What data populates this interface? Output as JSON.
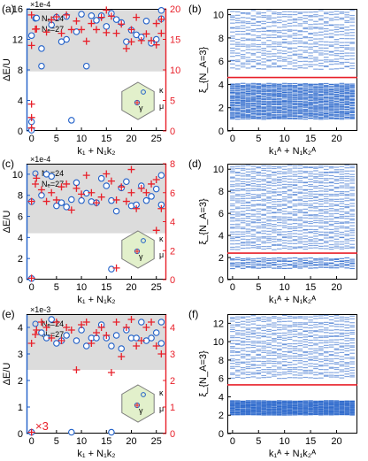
{
  "colors": {
    "blue": "#1f5fc8",
    "red": "#e8202a",
    "band": "#dcdcdc",
    "bz_fill": "#e2f0cb",
    "bz_stroke": "#7a7a7a",
    "entanglement_line": "#e8202a"
  },
  "left_axis_label": "ΔE/U",
  "x_axis_left_label": "k₁ + N₁k₂",
  "x_axis_right_label": "k₁ᴬ + N₁k₂ᴬ",
  "legend": {
    "blue": "Nₑ=24",
    "red": "Nₑ=27"
  },
  "bz_labels": {
    "gamma": "γ",
    "kappa": "κ",
    "mu": "μ"
  },
  "chart_data": [
    {
      "panel_label": "(a)",
      "type": "scatter",
      "exponent": "×1e-4",
      "xlim": [
        -1,
        27
      ],
      "xticks": [
        0,
        5,
        10,
        15,
        20,
        25
      ],
      "ylim_left": [
        0,
        16
      ],
      "yticks_left": [
        0,
        4,
        8,
        12,
        16
      ],
      "ylim_right": [
        0,
        20
      ],
      "yticks_right": [
        0,
        5,
        10,
        15,
        20
      ],
      "gray_band_left": [
        7.8,
        16
      ],
      "series": [
        {
          "name": "Nₑ=24",
          "color": "blue",
          "marker": "circle",
          "points": [
            [
              0,
              0.1
            ],
            [
              0,
              1.2
            ],
            [
              0,
              12.5
            ],
            [
              1,
              14.8
            ],
            [
              2,
              10.8
            ],
            [
              2,
              8.5
            ],
            [
              4,
              13.9
            ],
            [
              5,
              14.9
            ],
            [
              6,
              11.7
            ],
            [
              7,
              12.0
            ],
            [
              7,
              15.0
            ],
            [
              8,
              1.4
            ],
            [
              9,
              13.0
            ],
            [
              10,
              15.3
            ],
            [
              11,
              8.5
            ],
            [
              12,
              15.1
            ],
            [
              13,
              14.5
            ],
            [
              14,
              15.1
            ],
            [
              15,
              13.7
            ],
            [
              16,
              15.4
            ],
            [
              17,
              14.6
            ],
            [
              18,
              14.2
            ],
            [
              19,
              11.7
            ],
            [
              20,
              13.2
            ],
            [
              21,
              12.6
            ],
            [
              22,
              12.3
            ],
            [
              23,
              14.4
            ],
            [
              24,
              11.5
            ],
            [
              25,
              12.0
            ],
            [
              26,
              15.8
            ],
            [
              26,
              14.7
            ]
          ]
        },
        {
          "name": "Nₑ=27",
          "color": "red",
          "marker": "plus",
          "points": [
            [
              0,
              0.5
            ],
            [
              0,
              2.2
            ],
            [
              0,
              4.4
            ],
            [
              0,
              14.0
            ],
            [
              0,
              19.0
            ],
            [
              1,
              16.7
            ],
            [
              3,
              16.2
            ],
            [
              4,
              18.2
            ],
            [
              5,
              18.7
            ],
            [
              6,
              16.0
            ],
            [
              7,
              19.0
            ],
            [
              8,
              16.6
            ],
            [
              9,
              18.0
            ],
            [
              10,
              16.6
            ],
            [
              11,
              14.7
            ],
            [
              12,
              17.6
            ],
            [
              13,
              16.6
            ],
            [
              14,
              18.6
            ],
            [
              15,
              19.8
            ],
            [
              15,
              16.1
            ],
            [
              16,
              18.8
            ],
            [
              17,
              16.0
            ],
            [
              18,
              17.5
            ],
            [
              19,
              13.5
            ],
            [
              20,
              16.6
            ],
            [
              20,
              14.6
            ],
            [
              21,
              18.6
            ],
            [
              22,
              14.8
            ],
            [
              23,
              15.9
            ],
            [
              24,
              14.8
            ],
            [
              25,
              17.6
            ],
            [
              25,
              14.1
            ],
            [
              26,
              18.3
            ],
            [
              26,
              16.0
            ]
          ]
        }
      ]
    },
    {
      "panel_label": "(c)",
      "type": "scatter",
      "exponent": "×1e-4",
      "xlim": [
        -1,
        27
      ],
      "xticks": [
        0,
        5,
        10,
        15,
        20,
        25
      ],
      "ylim_left": [
        0,
        11
      ],
      "yticks_left": [
        0,
        2,
        4,
        6,
        8,
        10
      ],
      "ylim_right": [
        0,
        8
      ],
      "yticks_right": [
        0,
        2,
        4,
        6,
        8
      ],
      "gray_band_left": [
        4.4,
        11
      ],
      "series": [
        {
          "name": "Nₑ=24",
          "color": "blue",
          "marker": "circle",
          "points": [
            [
              0,
              0.1
            ],
            [
              0,
              7.4
            ],
            [
              2,
              8.0
            ],
            [
              3,
              10.0
            ],
            [
              4,
              9.8
            ],
            [
              5,
              7.0
            ],
            [
              6,
              7.3
            ],
            [
              7,
              6.9
            ],
            [
              8,
              7.6
            ],
            [
              9,
              9.2
            ],
            [
              10,
              7.5
            ],
            [
              11,
              8.2
            ],
            [
              12,
              7.4
            ],
            [
              13,
              7.3
            ],
            [
              14,
              9.6
            ],
            [
              15,
              8.9
            ],
            [
              16,
              1.0
            ],
            [
              16,
              7.5
            ],
            [
              17,
              6.5
            ],
            [
              18,
              8.7
            ],
            [
              19,
              9.3
            ],
            [
              20,
              7.0
            ],
            [
              21,
              7.1
            ],
            [
              22,
              8.9
            ],
            [
              23,
              7.5
            ],
            [
              24,
              7.9
            ],
            [
              25,
              8.6
            ],
            [
              26,
              9.9
            ],
            [
              26,
              7.1
            ]
          ]
        },
        {
          "name": "Nₑ=27",
          "color": "red",
          "marker": "plus",
          "points": [
            [
              0,
              0.1
            ],
            [
              0,
              5.4
            ],
            [
              1,
              7.0
            ],
            [
              2,
              6.2
            ],
            [
              3,
              5.4
            ],
            [
              4,
              6.0
            ],
            [
              5,
              5.5
            ],
            [
              6,
              6.4
            ],
            [
              7,
              6.6
            ],
            [
              8,
              4.8
            ],
            [
              9,
              6.3
            ],
            [
              10,
              5.9
            ],
            [
              11,
              7.2
            ],
            [
              12,
              6.0
            ],
            [
              13,
              5.3
            ],
            [
              14,
              5.7
            ],
            [
              15,
              7.3
            ],
            [
              16,
              6.8
            ],
            [
              17,
              5.5
            ],
            [
              17,
              0.8
            ],
            [
              18,
              6.4
            ],
            [
              19,
              5.4
            ],
            [
              20,
              7.6
            ],
            [
              20,
              6.0
            ],
            [
              21,
              4.9
            ],
            [
              22,
              6.3
            ],
            [
              23,
              6.0
            ],
            [
              24,
              6.6
            ],
            [
              25,
              6.9
            ],
            [
              25,
              3.4
            ],
            [
              26,
              4.9
            ]
          ]
        }
      ]
    },
    {
      "panel_label": "(e)",
      "type": "scatter",
      "exponent": "×1e-3",
      "annotation": "×3",
      "xlim": [
        -1,
        27
      ],
      "xticks": [
        0,
        5,
        10,
        15,
        20,
        25
      ],
      "ylim_left": [
        0,
        4.5
      ],
      "yticks_left": [
        0,
        1,
        2,
        3,
        4
      ],
      "ylim_right": [
        0,
        4.5
      ],
      "yticks_right": [
        0,
        1,
        2,
        3,
        4
      ],
      "gray_band_left": [
        2.4,
        4.5
      ],
      "series": [
        {
          "name": "Nₑ=24",
          "color": "blue",
          "marker": "circle",
          "points": [
            [
              0,
              0.05
            ],
            [
              2,
              3.8
            ],
            [
              3,
              3.6
            ],
            [
              4,
              4.3
            ],
            [
              5,
              3.4
            ],
            [
              6,
              3.5
            ],
            [
              7,
              3.7
            ],
            [
              8,
              0.05
            ],
            [
              9,
              3.5
            ],
            [
              10,
              3.9
            ],
            [
              11,
              3.3
            ],
            [
              12,
              3.6
            ],
            [
              13,
              3.6
            ],
            [
              14,
              4.1
            ],
            [
              15,
              3.6
            ],
            [
              16,
              0.05
            ],
            [
              16,
              3.3
            ],
            [
              17,
              3.7
            ],
            [
              18,
              3.2
            ],
            [
              19,
              3.9
            ],
            [
              20,
              3.6
            ],
            [
              21,
              3.6
            ],
            [
              22,
              4.2
            ],
            [
              23,
              3.5
            ],
            [
              24,
              3.6
            ],
            [
              25,
              3.8
            ],
            [
              26,
              4.2
            ],
            [
              26,
              3.4
            ]
          ]
        },
        {
          "name": "Nₑ=27",
          "color": "red",
          "marker": "plus",
          "points": [
            [
              0,
              0.05
            ],
            [
              0,
              3.4
            ],
            [
              1,
              3.9
            ],
            [
              2,
              4.2
            ],
            [
              3,
              4.0
            ],
            [
              4,
              3.6
            ],
            [
              5,
              4.2
            ],
            [
              6,
              3.5
            ],
            [
              7,
              4.0
            ],
            [
              8,
              3.9
            ],
            [
              9,
              2.4
            ],
            [
              10,
              4.1
            ],
            [
              11,
              4.2
            ],
            [
              12,
              3.4
            ],
            [
              13,
              3.8
            ],
            [
              14,
              4.0
            ],
            [
              15,
              3.7
            ],
            [
              16,
              2.3
            ],
            [
              17,
              4.2
            ],
            [
              18,
              2.9
            ],
            [
              19,
              4.0
            ],
            [
              20,
              4.3
            ],
            [
              21,
              3.3
            ],
            [
              22,
              3.5
            ],
            [
              23,
              4.0
            ],
            [
              24,
              4.2
            ],
            [
              25,
              3.3
            ],
            [
              26,
              3.0
            ]
          ]
        }
      ]
    },
    {
      "panel_label": "(b)",
      "type": "scatter",
      "ylabel": "ξ_{N_A=3}",
      "xlim": [
        -1,
        24
      ],
      "xticks": [
        0,
        5,
        10,
        15,
        20
      ],
      "ylim": [
        0,
        10.5
      ],
      "yticks": [
        0,
        2,
        4,
        6,
        8,
        10
      ],
      "gap_line": 4.6,
      "spectrum": {
        "low_band": [
          1.0,
          4.1
        ],
        "high_band": [
          5.3,
          10.4
        ],
        "low_levels": 32,
        "high_levels": 20
      }
    },
    {
      "panel_label": "(d)",
      "type": "scatter",
      "ylabel": "ξ_{N_A=3}",
      "xlim": [
        -1,
        24
      ],
      "xticks": [
        0,
        5,
        10,
        15,
        20
      ],
      "ylim": [
        0,
        10.5
      ],
      "yticks": [
        0,
        2,
        4,
        6,
        8,
        10
      ],
      "gap_line": 2.4,
      "spectrum": {
        "low_band": [
          1.0,
          2.0
        ],
        "high_band": [
          2.7,
          10.4
        ],
        "low_levels": 6,
        "high_levels": 34
      }
    },
    {
      "panel_label": "(f)",
      "type": "scatter",
      "ylabel": "ξ_{N_A=3}",
      "xlim": [
        -1,
        24
      ],
      "xticks": [
        0,
        5,
        10,
        15,
        20
      ],
      "ylim": [
        0,
        13
      ],
      "yticks": [
        0,
        2,
        4,
        6,
        8,
        10,
        12
      ],
      "gap_line": 5.3,
      "spectrum": {
        "low_band": [
          2.0,
          3.6
        ],
        "high_band": [
          6.0,
          12.9
        ],
        "low_levels": 22,
        "high_levels": 24
      }
    }
  ]
}
